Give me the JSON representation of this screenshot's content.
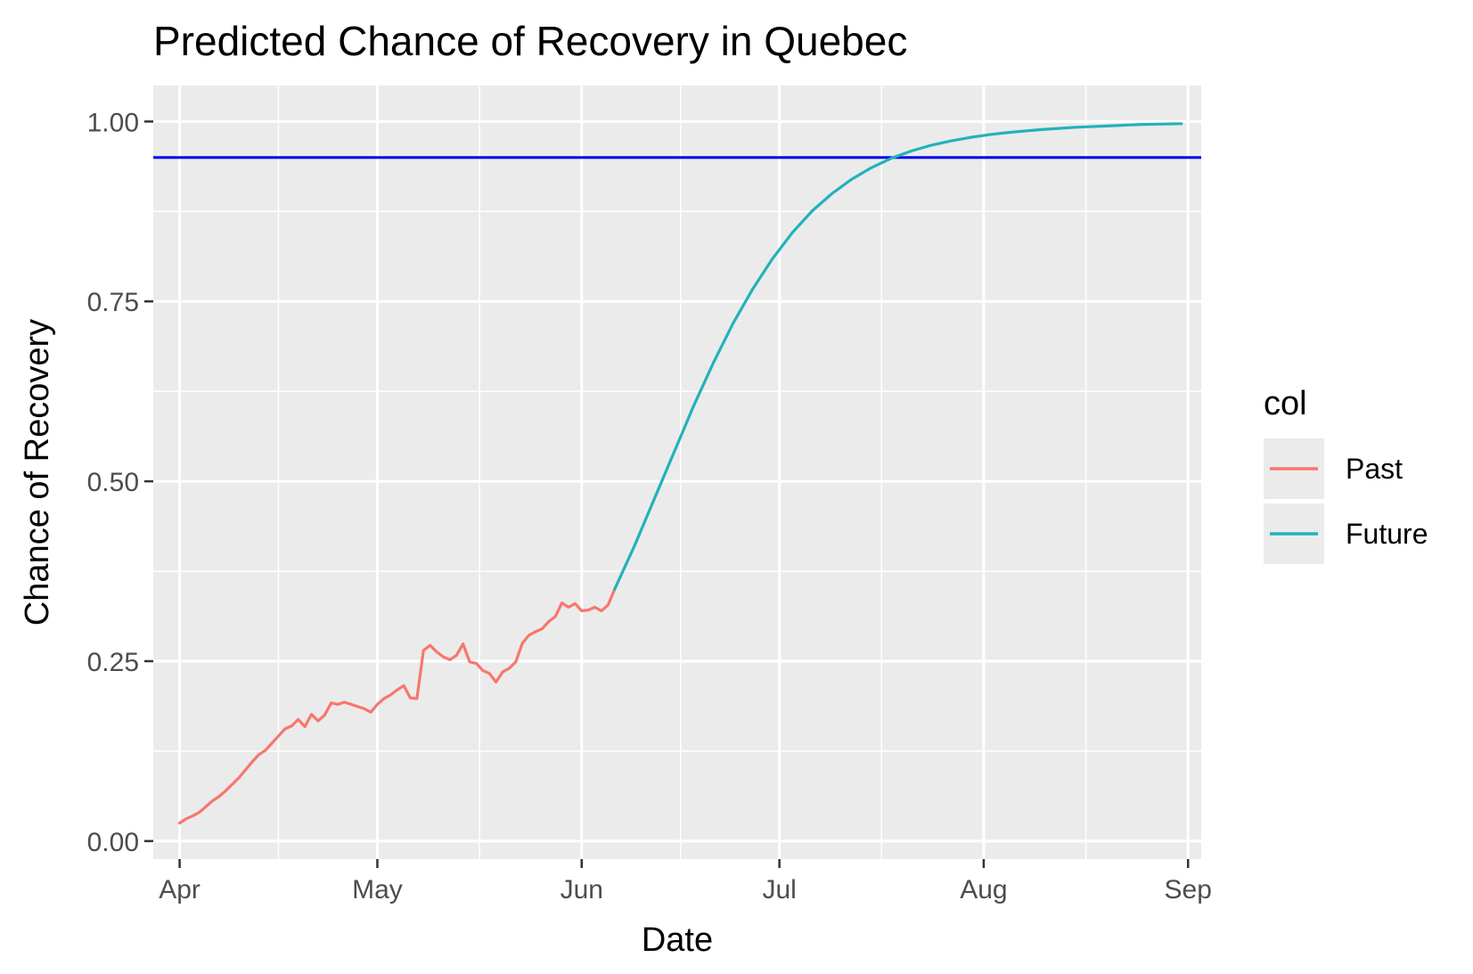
{
  "chart_data": {
    "type": "line",
    "title": "Predicted Chance of Recovery in Quebec",
    "xlabel": "Date",
    "ylabel": "Chance of Recovery",
    "x_axis": {
      "kind": "date",
      "range": [
        "2020-03-28",
        "2020-09-03"
      ],
      "ticks": [
        {
          "date": "2020-04-01",
          "label": "Apr"
        },
        {
          "date": "2020-05-01",
          "label": "May"
        },
        {
          "date": "2020-06-01",
          "label": "Jun"
        },
        {
          "date": "2020-07-01",
          "label": "Jul"
        },
        {
          "date": "2020-08-01",
          "label": "Aug"
        },
        {
          "date": "2020-09-01",
          "label": "Sep"
        }
      ]
    },
    "y_axis": {
      "range": [
        -0.025,
        1.05
      ],
      "ticks": [
        0.0,
        0.25,
        0.5,
        0.75,
        1.0
      ],
      "tick_labels": [
        "0.00",
        "0.25",
        "0.50",
        "0.75",
        "1.00"
      ]
    },
    "grid": true,
    "reference_line": {
      "y": 0.95,
      "color": "#0000EE"
    },
    "legend": {
      "title": "col",
      "placement": "right",
      "entries": [
        {
          "name": "Past",
          "color": "#F8766D"
        },
        {
          "name": "Future",
          "color": "#22B2BA"
        }
      ]
    },
    "series": [
      {
        "name": "Past",
        "color": "#F8766D",
        "points": [
          [
            "2020-04-01",
            0.025
          ],
          [
            "2020-04-02",
            0.031
          ],
          [
            "2020-04-03",
            0.035
          ],
          [
            "2020-04-04",
            0.04
          ],
          [
            "2020-04-05",
            0.048
          ],
          [
            "2020-04-06",
            0.056
          ],
          [
            "2020-04-07",
            0.062
          ],
          [
            "2020-04-08",
            0.07
          ],
          [
            "2020-04-09",
            0.079
          ],
          [
            "2020-04-10",
            0.088
          ],
          [
            "2020-04-11",
            0.099
          ],
          [
            "2020-04-12",
            0.11
          ],
          [
            "2020-04-13",
            0.12
          ],
          [
            "2020-04-14",
            0.126
          ],
          [
            "2020-04-15",
            0.136
          ],
          [
            "2020-04-16",
            0.146
          ],
          [
            "2020-04-17",
            0.156
          ],
          [
            "2020-04-18",
            0.16
          ],
          [
            "2020-04-19",
            0.169
          ],
          [
            "2020-04-20",
            0.159
          ],
          [
            "2020-04-21",
            0.176
          ],
          [
            "2020-04-22",
            0.167
          ],
          [
            "2020-04-23",
            0.175
          ],
          [
            "2020-04-24",
            0.192
          ],
          [
            "2020-04-25",
            0.19
          ],
          [
            "2020-04-26",
            0.193
          ],
          [
            "2020-04-27",
            0.19
          ],
          [
            "2020-04-28",
            0.187
          ],
          [
            "2020-04-29",
            0.184
          ],
          [
            "2020-04-30",
            0.179
          ],
          [
            "2020-05-01",
            0.19
          ],
          [
            "2020-05-02",
            0.198
          ],
          [
            "2020-05-03",
            0.203
          ],
          [
            "2020-05-04",
            0.21
          ],
          [
            "2020-05-05",
            0.216
          ],
          [
            "2020-05-06",
            0.199
          ],
          [
            "2020-05-07",
            0.198
          ],
          [
            "2020-05-08",
            0.265
          ],
          [
            "2020-05-09",
            0.272
          ],
          [
            "2020-05-10",
            0.263
          ],
          [
            "2020-05-11",
            0.256
          ],
          [
            "2020-05-12",
            0.252
          ],
          [
            "2020-05-13",
            0.258
          ],
          [
            "2020-05-14",
            0.274
          ],
          [
            "2020-05-15",
            0.249
          ],
          [
            "2020-05-16",
            0.247
          ],
          [
            "2020-05-17",
            0.237
          ],
          [
            "2020-05-18",
            0.233
          ],
          [
            "2020-05-19",
            0.221
          ],
          [
            "2020-05-20",
            0.235
          ],
          [
            "2020-05-21",
            0.24
          ],
          [
            "2020-05-22",
            0.249
          ],
          [
            "2020-05-23",
            0.275
          ],
          [
            "2020-05-24",
            0.286
          ],
          [
            "2020-05-25",
            0.291
          ],
          [
            "2020-05-26",
            0.295
          ],
          [
            "2020-05-27",
            0.305
          ],
          [
            "2020-05-28",
            0.312
          ],
          [
            "2020-05-29",
            0.331
          ],
          [
            "2020-05-30",
            0.325
          ],
          [
            "2020-05-31",
            0.33
          ],
          [
            "2020-06-01",
            0.32
          ],
          [
            "2020-06-02",
            0.321
          ],
          [
            "2020-06-03",
            0.325
          ],
          [
            "2020-06-04",
            0.32
          ],
          [
            "2020-06-05",
            0.328
          ],
          [
            "2020-06-06",
            0.35
          ]
        ]
      },
      {
        "name": "Future",
        "color": "#22B2BA",
        "points": [
          [
            "2020-06-06",
            0.35
          ],
          [
            "2020-06-09",
            0.41
          ],
          [
            "2020-06-12",
            0.475
          ],
          [
            "2020-06-15",
            0.54
          ],
          [
            "2020-06-18",
            0.605
          ],
          [
            "2020-06-21",
            0.665
          ],
          [
            "2020-06-24",
            0.72
          ],
          [
            "2020-06-27",
            0.768
          ],
          [
            "2020-06-30",
            0.81
          ],
          [
            "2020-07-03",
            0.846
          ],
          [
            "2020-07-06",
            0.876
          ],
          [
            "2020-07-09",
            0.9
          ],
          [
            "2020-07-12",
            0.92
          ],
          [
            "2020-07-15",
            0.936
          ],
          [
            "2020-07-18",
            0.949
          ],
          [
            "2020-07-21",
            0.959
          ],
          [
            "2020-07-24",
            0.967
          ],
          [
            "2020-07-27",
            0.973
          ],
          [
            "2020-07-30",
            0.978
          ],
          [
            "2020-08-02",
            0.982
          ],
          [
            "2020-08-05",
            0.985
          ],
          [
            "2020-08-10",
            0.989
          ],
          [
            "2020-08-15",
            0.992
          ],
          [
            "2020-08-20",
            0.994
          ],
          [
            "2020-08-25",
            0.996
          ],
          [
            "2020-08-31",
            0.997
          ]
        ]
      }
    ]
  }
}
